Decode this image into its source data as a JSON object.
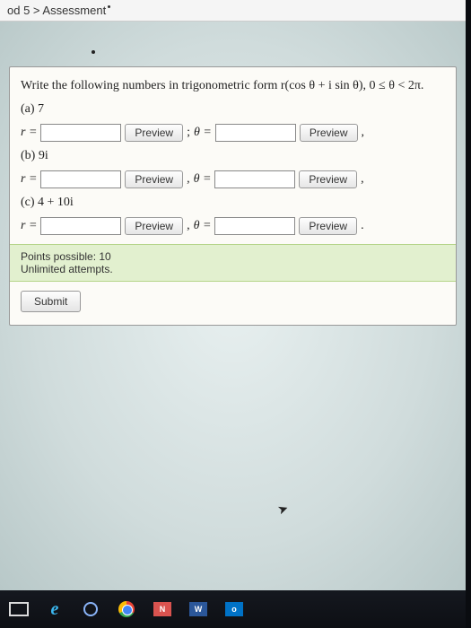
{
  "breadcrumb": "od 5 > Assessment",
  "question_text": "Write the following numbers in trigonometric form r(cos θ + i sin θ), 0 ≤ θ < 2π.",
  "parts": [
    {
      "label": "(a) 7",
      "r_prefix": "r =",
      "sep": ";",
      "theta_prefix": "θ =",
      "trail": ","
    },
    {
      "label": "(b) 9i",
      "r_prefix": "r =",
      "sep": ",",
      "theta_prefix": "θ =",
      "trail": ","
    },
    {
      "label": "(c) 4 + 10i",
      "r_prefix": "r =",
      "sep": ",",
      "theta_prefix": "θ =",
      "trail": "."
    }
  ],
  "preview_label": "Preview",
  "points_line1": "Points possible: 10",
  "points_line2": "Unlimited attempts.",
  "submit_label": "Submit",
  "taskbar": {
    "n_label": "N",
    "w_label": "W",
    "o_label": "o"
  }
}
